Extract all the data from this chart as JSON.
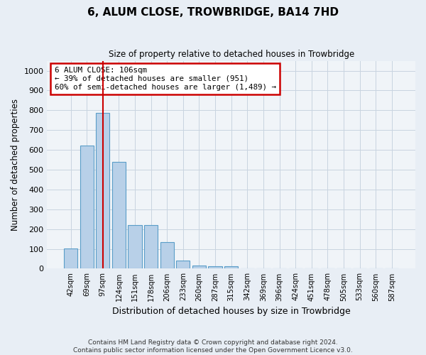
{
  "title": "6, ALUM CLOSE, TROWBRIDGE, BA14 7HD",
  "subtitle": "Size of property relative to detached houses in Trowbridge",
  "xlabel": "Distribution of detached houses by size in Trowbridge",
  "ylabel": "Number of detached properties",
  "categories": [
    "42sqm",
    "69sqm",
    "97sqm",
    "124sqm",
    "151sqm",
    "178sqm",
    "206sqm",
    "233sqm",
    "260sqm",
    "287sqm",
    "315sqm",
    "342sqm",
    "369sqm",
    "396sqm",
    "424sqm",
    "451sqm",
    "478sqm",
    "505sqm",
    "533sqm",
    "560sqm",
    "587sqm"
  ],
  "values": [
    103,
    622,
    788,
    538,
    220,
    220,
    133,
    42,
    17,
    14,
    11,
    0,
    0,
    0,
    0,
    0,
    0,
    0,
    0,
    0,
    0
  ],
  "bar_color": "#b8d0e8",
  "bar_edge_color": "#5a9dc8",
  "vline_x": 2.0,
  "vline_color": "#cc0000",
  "annotation_text": "6 ALUM CLOSE: 106sqm\n← 39% of detached houses are smaller (951)\n60% of semi-detached houses are larger (1,489) →",
  "annotation_box_color": "#ffffff",
  "annotation_border_color": "#cc0000",
  "ylim": [
    0,
    1050
  ],
  "yticks": [
    0,
    100,
    200,
    300,
    400,
    500,
    600,
    700,
    800,
    900,
    1000
  ],
  "footer_line1": "Contains HM Land Registry data © Crown copyright and database right 2024.",
  "footer_line2": "Contains public sector information licensed under the Open Government Licence v3.0.",
  "background_color": "#e8eef5",
  "plot_bg_color": "#f0f4f8",
  "grid_color": "#c8d4e0"
}
